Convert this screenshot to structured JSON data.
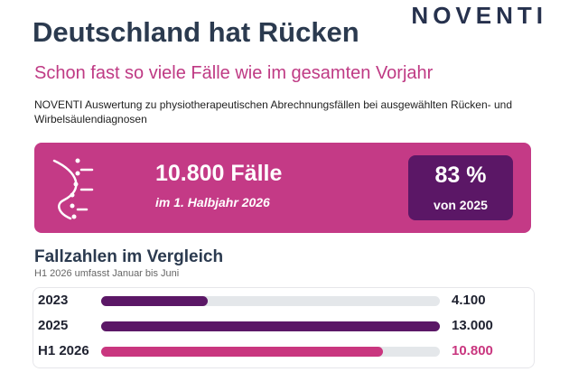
{
  "logo": "NOVENTI",
  "title": "Deutschland hat Rücken",
  "subtitle": "Schon fast so viele Fälle wie im gesamten Vorjahr",
  "description": "NOVENTI Auswertung zu physiotherapeutischen Abrechnungsfällen bei ausgewählten Rücken- und Wirbelsäulendiagnosen",
  "highlight": {
    "count": "10.800 Fälle",
    "period": "im 1. Halbjahr 2026",
    "share": "83 %",
    "reference": "von 2025"
  },
  "chart_data": {
    "type": "bar",
    "orientation": "horizontal",
    "title": "Fallzahlen im Vergleich",
    "subtitle": "H1 2026 umfasst Januar bis Juni",
    "categories": [
      "2023",
      "2025",
      "H1 2026"
    ],
    "values": [
      4100,
      13000,
      10800
    ],
    "value_labels": [
      "4.100",
      "13.000",
      "10.800"
    ],
    "colors": [
      "#5b1766",
      "#5b1766",
      "#c9367f"
    ],
    "label_colors": [
      "#1f2230",
      "#1f2230",
      "#c9367f"
    ],
    "xlim": [
      0,
      13000
    ]
  }
}
